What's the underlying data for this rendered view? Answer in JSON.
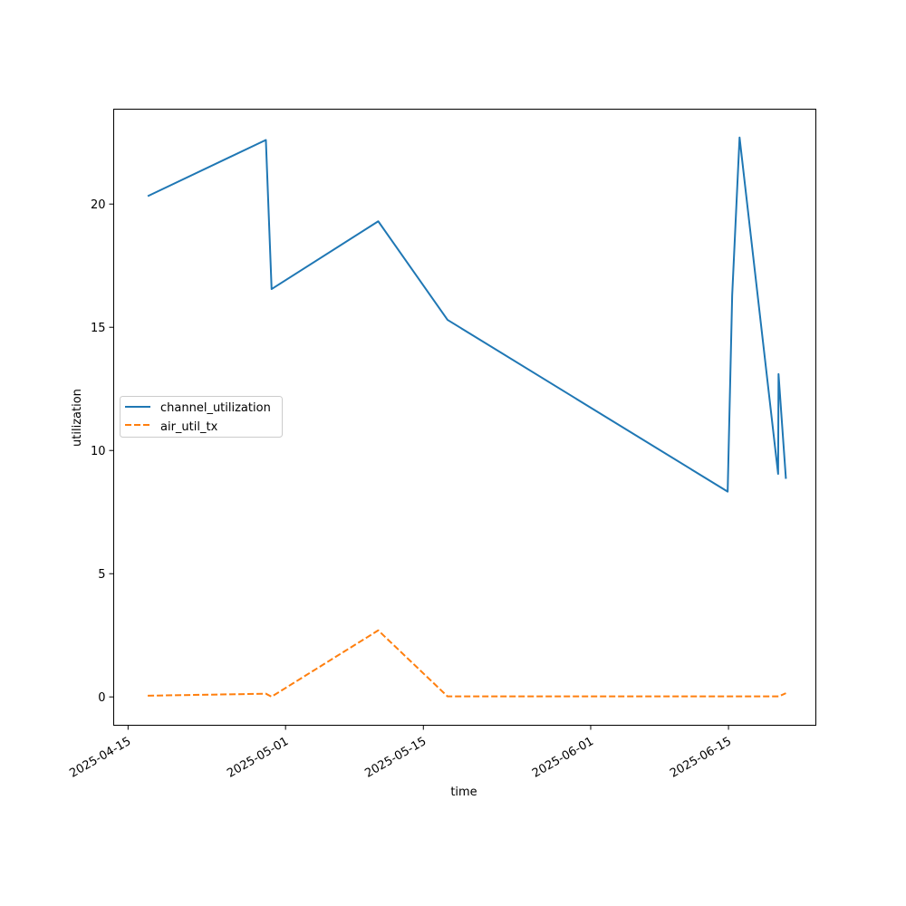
{
  "chart_data": {
    "type": "line",
    "title": "",
    "xlabel": "time",
    "ylabel": "utilization",
    "xlim": [
      "2025-04-13T13:00",
      "2025-06-23T21:00"
    ],
    "ylim": [
      -1.15,
      23.85
    ],
    "x_ticks": [
      "2025-04-15",
      "2025-05-01",
      "2025-05-15",
      "2025-06-01",
      "2025-06-15"
    ],
    "y_ticks": [
      0,
      5,
      10,
      15,
      20
    ],
    "grid": false,
    "legend": {
      "position": "center-left"
    },
    "series": [
      {
        "name": "channel_utilization",
        "color": "#1f77b4",
        "dash": "solid",
        "points": [
          [
            "2025-04-17T00:00",
            20.32
          ],
          [
            "2025-04-29T00:00",
            22.6
          ],
          [
            "2025-04-29T14:00",
            16.55
          ],
          [
            "2025-05-10T10:00",
            19.3
          ],
          [
            "2025-05-17T11:00",
            15.3
          ],
          [
            "2025-06-14T22:00",
            8.33
          ],
          [
            "2025-06-15T09:00",
            16.3
          ],
          [
            "2025-06-16T03:00",
            22.7
          ],
          [
            "2025-06-20T01:00",
            9.05
          ],
          [
            "2025-06-20T02:00",
            13.1
          ],
          [
            "2025-06-20T20:00",
            8.85
          ]
        ]
      },
      {
        "name": "air_util_tx",
        "color": "#ff7f0e",
        "dash": "dashed",
        "points": [
          [
            "2025-04-17T00:00",
            0.05
          ],
          [
            "2025-04-29T00:00",
            0.13
          ],
          [
            "2025-04-29T14:00",
            0.01
          ],
          [
            "2025-05-10T10:00",
            2.7
          ],
          [
            "2025-05-17T11:00",
            0.02
          ],
          [
            "2025-06-14T22:00",
            0.02
          ],
          [
            "2025-06-15T09:00",
            0.02
          ],
          [
            "2025-06-16T03:00",
            0.02
          ],
          [
            "2025-06-20T01:00",
            0.02
          ],
          [
            "2025-06-20T02:00",
            0.02
          ],
          [
            "2025-06-20T20:00",
            0.15
          ]
        ]
      }
    ]
  }
}
